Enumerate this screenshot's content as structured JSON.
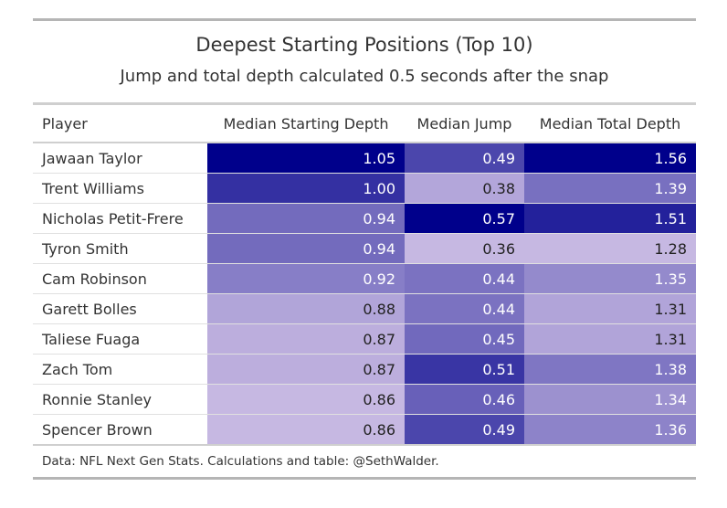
{
  "chart_data": {
    "type": "table",
    "title": "Deepest Starting Positions (Top 10)",
    "subtitle": "Jump and total depth calculated 0.5 seconds after the snap",
    "columns": [
      "Player",
      "Median Starting Depth",
      "Median Jump",
      "Median Total Depth"
    ],
    "rows": [
      {
        "player": "Jawaan Taylor",
        "starting_depth": "1.05",
        "jump": "0.49",
        "total_depth": "1.56"
      },
      {
        "player": "Trent Williams",
        "starting_depth": "1.00",
        "jump": "0.38",
        "total_depth": "1.39"
      },
      {
        "player": "Nicholas Petit-Frere",
        "starting_depth": "0.94",
        "jump": "0.57",
        "total_depth": "1.51"
      },
      {
        "player": "Tyron Smith",
        "starting_depth": "0.94",
        "jump": "0.36",
        "total_depth": "1.28"
      },
      {
        "player": "Cam Robinson",
        "starting_depth": "0.92",
        "jump": "0.44",
        "total_depth": "1.35"
      },
      {
        "player": "Garett Bolles",
        "starting_depth": "0.88",
        "jump": "0.44",
        "total_depth": "1.31"
      },
      {
        "player": "Taliese Fuaga",
        "starting_depth": "0.87",
        "jump": "0.45",
        "total_depth": "1.31"
      },
      {
        "player": "Zach Tom",
        "starting_depth": "0.87",
        "jump": "0.51",
        "total_depth": "1.38"
      },
      {
        "player": "Ronnie Stanley",
        "starting_depth": "0.86",
        "jump": "0.46",
        "total_depth": "1.34"
      },
      {
        "player": "Spencer Brown",
        "starting_depth": "0.86",
        "jump": "0.49",
        "total_depth": "1.36"
      }
    ],
    "source": "Data: NFL Next Gen Stats. Calculations and table: @SethWalder.",
    "colors": {
      "scale_low": "#c6b8e2",
      "scale_high": "#00008b",
      "dark_text": "#222222",
      "light_text": "#ffffff"
    }
  }
}
